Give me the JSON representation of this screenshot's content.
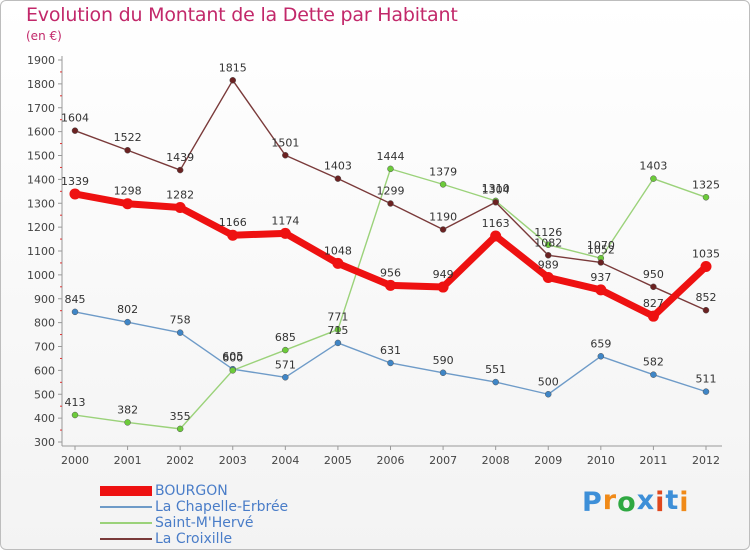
{
  "title": "Evolution du Montant de la Dette par Habitant",
  "subtitle": "(en €)",
  "brand": {
    "text": "Proxiti",
    "colors": [
      "#3d8fd8",
      "#f08a18",
      "#2fa842",
      "#3d8fd8",
      "#e0481e",
      "#3d8fd8",
      "#f08a18"
    ]
  },
  "chart_data": {
    "type": "line",
    "title": "Evolution du Montant de la Dette par Habitant",
    "ylabel": "(en €)",
    "xlabel": "",
    "x": [
      "2000",
      "2001",
      "2002",
      "2003",
      "2004",
      "2005",
      "2006",
      "2007",
      "2008",
      "2009",
      "2010",
      "2011",
      "2012"
    ],
    "ylim": [
      300,
      1900
    ],
    "yticks": [
      300,
      400,
      500,
      600,
      700,
      800,
      900,
      1000,
      1100,
      1200,
      1300,
      1400,
      1500,
      1600,
      1700,
      1800,
      1900
    ],
    "grid": false,
    "legend_position": "bottom-left",
    "series": [
      {
        "name": "BOURGON",
        "color": "#ee1111",
        "marker": "#ee1111",
        "width": 7,
        "values": [
          1339,
          1298,
          1282,
          1166,
          1174,
          1048,
          956,
          949,
          1163,
          989,
          937,
          827,
          1035
        ]
      },
      {
        "name": "La Chapelle-Erbrée",
        "color": "#6e9bc8",
        "marker": "#3f86c7",
        "width": 1.4,
        "values": [
          845,
          802,
          758,
          605,
          571,
          715,
          631,
          590,
          551,
          500,
          659,
          582,
          511
        ]
      },
      {
        "name": "Saint-M'Hervé",
        "color": "#9bd27a",
        "marker": "#6ccb3a",
        "width": 1.4,
        "values": [
          413,
          382,
          355,
          600,
          685,
          771,
          1444,
          1379,
          1310,
          1126,
          1070,
          1403,
          1325
        ]
      },
      {
        "name": "La Croixille",
        "color": "#7a3a3a",
        "marker": "#6b2222",
        "width": 1.4,
        "values": [
          1604,
          1522,
          1439,
          1815,
          1501,
          1403,
          1299,
          1190,
          1304,
          1082,
          1052,
          950,
          852
        ]
      }
    ]
  }
}
